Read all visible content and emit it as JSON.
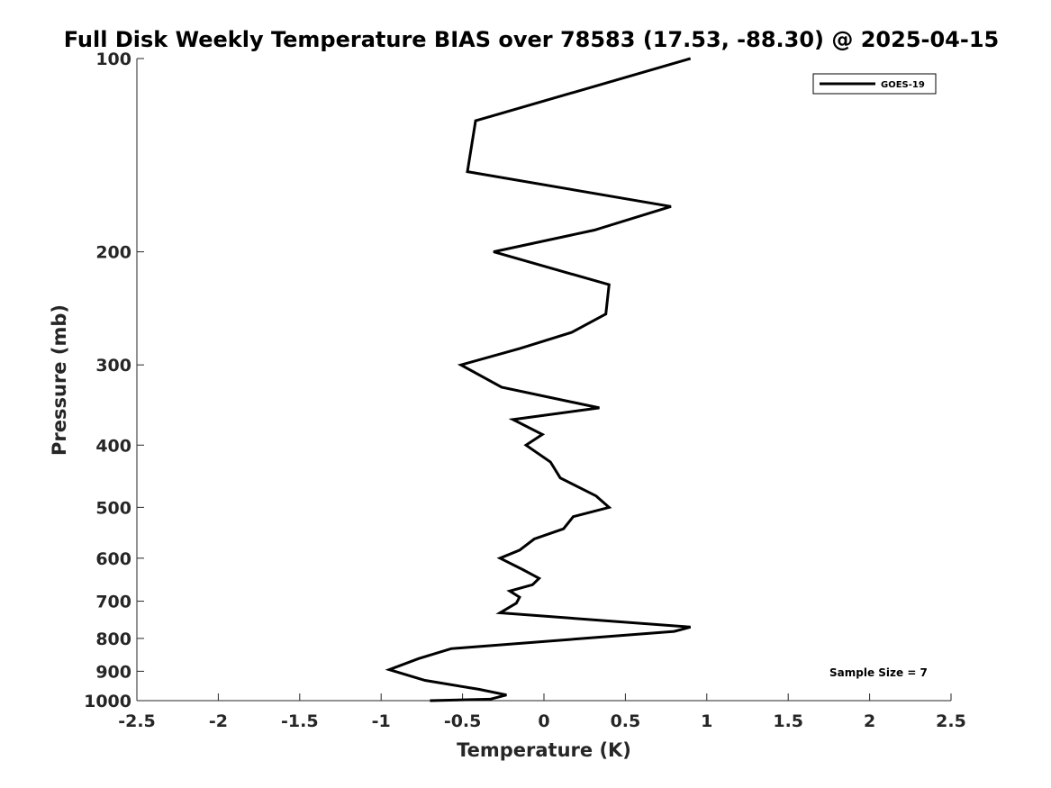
{
  "chart_data": {
    "type": "line",
    "title": "Full Disk Weekly Temperature BIAS over 78583 (17.53, -88.30) @ 2025-04-15",
    "xlabel": "Temperature (K)",
    "ylabel": "Pressure (mb)",
    "xlim": [
      -2.5,
      2.5
    ],
    "ylim": [
      100,
      1000
    ],
    "y_scale": "log",
    "y_direction": "reversed",
    "x_ticks": [
      -2.5,
      -2,
      -1.5,
      -1,
      -0.5,
      0,
      0.5,
      1,
      1.5,
      2,
      2.5
    ],
    "x_tick_labels": [
      "-2.5",
      "-2",
      "-1.5",
      "-1",
      "-0.5",
      "0",
      "0.5",
      "1",
      "1.5",
      "2",
      "2.5"
    ],
    "y_ticks": [
      100,
      200,
      300,
      400,
      500,
      600,
      700,
      800,
      900,
      1000
    ],
    "y_tick_labels": [
      "100",
      "200",
      "300",
      "400",
      "500",
      "600",
      "700",
      "800",
      "900",
      "1000"
    ],
    "grid": false,
    "legend": {
      "position": "top-right",
      "entries": [
        "GOES-19"
      ]
    },
    "annotations": [
      {
        "text": "Sample Size = 7",
        "position": "bottom-right"
      }
    ],
    "series": [
      {
        "name": "GOES-19",
        "color": "#000000",
        "x": [
          0.9,
          -0.42,
          -0.47,
          0.78,
          0.31,
          -0.31,
          0.4,
          0.38,
          0.17,
          -0.15,
          -0.51,
          -0.26,
          0.34,
          -0.19,
          -0.01,
          -0.11,
          0.04,
          0.1,
          0.32,
          0.4,
          0.18,
          0.12,
          -0.06,
          -0.15,
          -0.27,
          -0.13,
          -0.03,
          -0.07,
          -0.21,
          -0.15,
          -0.17,
          -0.27,
          0.9,
          0.8,
          -0.57,
          -0.77,
          -0.95,
          -0.73,
          -0.4,
          -0.23,
          -0.33,
          -0.7
        ],
        "y": [
          100,
          125,
          150,
          170,
          185,
          200,
          225,
          250,
          267,
          283,
          300,
          325,
          350,
          365,
          385,
          400,
          425,
          450,
          480,
          500,
          517,
          540,
          560,
          583,
          600,
          625,
          645,
          660,
          675,
          690,
          705,
          730,
          768,
          780,
          830,
          860,
          895,
          930,
          960,
          980,
          995,
          1000
        ]
      }
    ]
  }
}
